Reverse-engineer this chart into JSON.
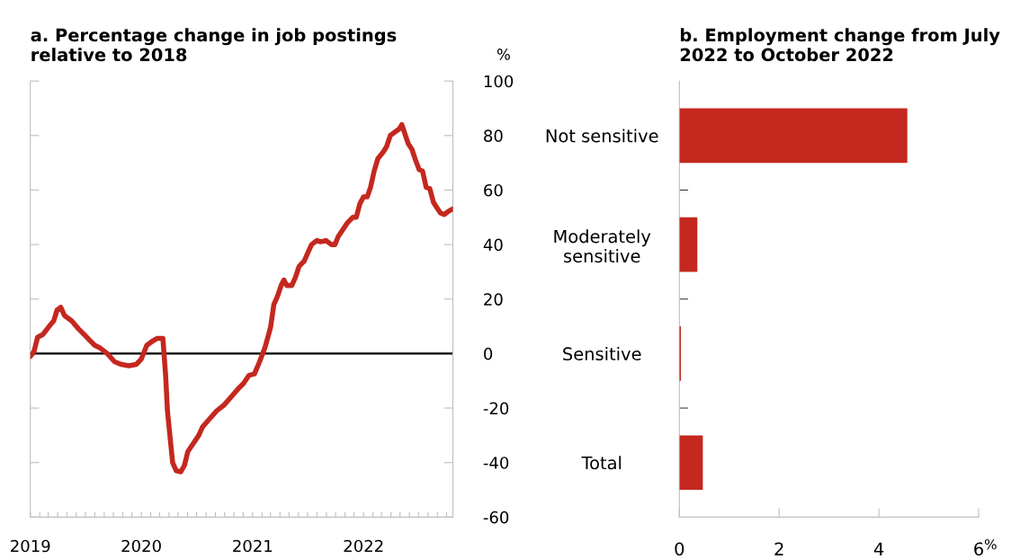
{
  "chart_data": [
    {
      "type": "line",
      "title": "a. Percentage change in job postings\nrelative to 2018",
      "ylabel": "%",
      "x": [
        "2019-01-01",
        "2019-01-13",
        "2019-01-25",
        "2019-02-11",
        "2019-03-04",
        "2019-03-19",
        "2019-03-30",
        "2019-04-11",
        "2019-04-23",
        "2019-05-17",
        "2019-06-09",
        "2019-06-27",
        "2019-07-14",
        "2019-08-01",
        "2019-08-19",
        "2019-09-11",
        "2019-10-05",
        "2019-10-28",
        "2019-11-21",
        "2019-12-15",
        "2020-01-01",
        "2020-01-19",
        "2020-02-06",
        "2020-02-23",
        "2020-03-12",
        "2020-03-21",
        "2020-03-27",
        "2020-04-05",
        "2020-04-13",
        "2020-04-25",
        "2020-05-10",
        "2020-05-22",
        "2020-06-02",
        "2020-06-20",
        "2020-07-08",
        "2020-07-20",
        "2020-08-12",
        "2020-09-05",
        "2020-09-28",
        "2020-10-22",
        "2020-11-14",
        "2020-12-02",
        "2020-12-20",
        "2021-01-07",
        "2021-01-24",
        "2021-02-11",
        "2021-03-01",
        "2021-03-12",
        "2021-03-24",
        "2021-04-05",
        "2021-04-14",
        "2021-04-23",
        "2021-05-10",
        "2021-05-22",
        "2021-06-03",
        "2021-06-20",
        "2021-07-02",
        "2021-07-14",
        "2021-08-01",
        "2021-08-13",
        "2021-08-30",
        "2021-09-17",
        "2021-09-29",
        "2021-10-10",
        "2021-10-28",
        "2021-11-09",
        "2021-11-27",
        "2021-12-08",
        "2021-12-20",
        "2022-01-01",
        "2022-01-13",
        "2022-01-24",
        "2022-02-05",
        "2022-02-17",
        "2022-03-07",
        "2022-03-18",
        "2022-03-30",
        "2022-04-11",
        "2022-04-29",
        "2022-05-07",
        "2022-05-16",
        "2022-05-28",
        "2022-06-09",
        "2022-06-21",
        "2022-07-03",
        "2022-07-14",
        "2022-07-26",
        "2022-08-07",
        "2022-08-19",
        "2022-08-30",
        "2022-09-11",
        "2022-09-23",
        "2022-10-05",
        "2022-10-20"
      ],
      "series": [
        {
          "color": "#c4281f",
          "values": [
            -1,
            0.7,
            6,
            7,
            10,
            12,
            16,
            17,
            14,
            12,
            9,
            7,
            5,
            3,
            2,
            0,
            -3,
            -4,
            -4.5,
            -4,
            -2,
            3,
            4.5,
            5.6,
            5.6,
            -8,
            -21,
            -31,
            -40,
            -43,
            -43.4,
            -41,
            -36,
            -33,
            -30,
            -27,
            -24,
            -21,
            -19,
            -16,
            -13,
            -11,
            -8,
            -7.5,
            -3,
            2.3,
            9.5,
            18,
            21,
            25,
            27,
            25,
            25,
            28,
            32,
            34,
            37,
            40,
            41.5,
            41,
            41.5,
            40,
            40,
            43,
            46,
            48,
            50,
            50,
            55,
            57.5,
            57.5,
            61,
            67,
            71.5,
            74,
            76,
            80,
            81,
            82.5,
            84,
            81,
            77,
            75,
            71,
            67.5,
            67,
            61,
            60.5,
            55.5,
            53.6,
            51.6,
            51,
            52,
            53
          ]
        }
      ],
      "xlim": [
        "2019-01-01",
        "2022-10-22"
      ],
      "xticks": [
        {
          "value": "2019-01-01",
          "label": "2019"
        },
        {
          "value": "2019-02-01",
          "label": null
        },
        {
          "value": "2019-03-01",
          "label": null
        },
        {
          "value": "2019-04-01",
          "label": null
        },
        {
          "value": "2019-05-01",
          "label": null
        },
        {
          "value": "2019-06-01",
          "label": null
        },
        {
          "value": "2019-07-01",
          "label": null
        },
        {
          "value": "2019-08-01",
          "label": null
        },
        {
          "value": "2019-09-01",
          "label": null
        },
        {
          "value": "2019-10-01",
          "label": null
        },
        {
          "value": "2019-11-01",
          "label": null
        },
        {
          "value": "2019-12-01",
          "label": null
        },
        {
          "value": "2020-01-01",
          "label": "2020"
        },
        {
          "value": "2020-02-01",
          "label": null
        },
        {
          "value": "2020-03-01",
          "label": null
        },
        {
          "value": "2020-04-01",
          "label": null
        },
        {
          "value": "2020-05-01",
          "label": null
        },
        {
          "value": "2020-06-01",
          "label": null
        },
        {
          "value": "2020-07-01",
          "label": null
        },
        {
          "value": "2020-08-01",
          "label": null
        },
        {
          "value": "2020-09-01",
          "label": null
        },
        {
          "value": "2020-10-01",
          "label": null
        },
        {
          "value": "2020-11-01",
          "label": null
        },
        {
          "value": "2020-12-01",
          "label": null
        },
        {
          "value": "2021-01-01",
          "label": "2021"
        },
        {
          "value": "2021-02-01",
          "label": null
        },
        {
          "value": "2021-03-01",
          "label": null
        },
        {
          "value": "2021-04-01",
          "label": null
        },
        {
          "value": "2021-05-01",
          "label": null
        },
        {
          "value": "2021-06-01",
          "label": null
        },
        {
          "value": "2021-07-01",
          "label": null
        },
        {
          "value": "2021-08-01",
          "label": null
        },
        {
          "value": "2021-09-01",
          "label": null
        },
        {
          "value": "2021-10-01",
          "label": null
        },
        {
          "value": "2021-11-01",
          "label": null
        },
        {
          "value": "2021-12-01",
          "label": null
        },
        {
          "value": "2022-01-01",
          "label": "2022"
        },
        {
          "value": "2022-02-01",
          "label": null
        },
        {
          "value": "2022-03-01",
          "label": null
        },
        {
          "value": "2022-04-01",
          "label": null
        },
        {
          "value": "2022-05-01",
          "label": null
        },
        {
          "value": "2022-06-01",
          "label": null
        },
        {
          "value": "2022-07-01",
          "label": null
        },
        {
          "value": "2022-08-01",
          "label": null
        },
        {
          "value": "2022-09-01",
          "label": null
        },
        {
          "value": "2022-10-01",
          "label": null
        }
      ],
      "ylim": [
        -60,
        100
      ],
      "yticks": [
        -60,
        -40,
        -20,
        0,
        20,
        40,
        60,
        80,
        100
      ],
      "ref_lines": [
        {
          "axis": "y",
          "value": 0,
          "color": "#000000"
        }
      ],
      "grid": false,
      "legend": false
    },
    {
      "type": "bar",
      "orientation": "horizontal",
      "title": "b. Employment change from July\n2022 to October 2022",
      "xlabel": "%",
      "categories": [
        "Not sensitive",
        "Moderately\nsensitive",
        "Sensitive",
        "Total"
      ],
      "values": [
        4.57,
        0.36,
        0.03,
        0.47
      ],
      "color": "#c4281f",
      "xlim": [
        0,
        6
      ],
      "xticks": [
        0,
        2,
        4,
        6
      ],
      "grid": false,
      "legend": false
    }
  ]
}
